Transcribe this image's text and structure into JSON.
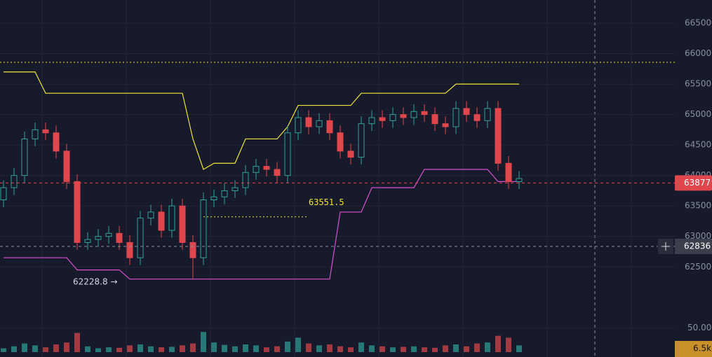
{
  "chart_data": {
    "type": "candlestick",
    "open": [
      63600,
      63800,
      64000,
      64600,
      64750,
      64700,
      64400,
      63900,
      62900,
      62950,
      63000,
      63050,
      62900,
      62650,
      63300,
      63400,
      63100,
      63500,
      62900,
      62650,
      63600,
      63650,
      63750,
      63800,
      64050,
      64150,
      64100,
      64000,
      64700,
      64950,
      64800,
      64900,
      64700,
      64400,
      64300,
      64850,
      64950,
      64900,
      65000,
      64950,
      65050,
      65000,
      64850,
      64800,
      65100,
      65000,
      64900,
      65100,
      64200,
      63900
    ],
    "high": [
      63920,
      64120,
      64720,
      64870,
      64870,
      64820,
      64520,
      64020,
      63070,
      63120,
      63170,
      63170,
      63020,
      63420,
      63520,
      63520,
      63620,
      63620,
      63020,
      63720,
      63770,
      63870,
      63920,
      64170,
      64270,
      64270,
      64220,
      64820,
      65070,
      65070,
      65020,
      65020,
      64820,
      64520,
      64970,
      65070,
      65070,
      65120,
      65120,
      65170,
      65170,
      65120,
      64970,
      65220,
      65220,
      65120,
      65220,
      65220,
      64320,
      64070
    ],
    "low": [
      63480,
      63680,
      63880,
      64480,
      64580,
      64280,
      63780,
      62780,
      62780,
      62830,
      62880,
      62780,
      62530,
      62530,
      63180,
      62980,
      62980,
      62780,
      62300,
      62530,
      63480,
      63530,
      63630,
      63680,
      63930,
      63980,
      63880,
      63880,
      64580,
      64680,
      64680,
      64580,
      64280,
      64180,
      64180,
      64730,
      64780,
      64780,
      64830,
      64830,
      64880,
      64730,
      64680,
      64680,
      64880,
      64780,
      64780,
      64080,
      63780,
      63780
    ],
    "close": [
      63800,
      64000,
      64600,
      64750,
      64700,
      64400,
      63900,
      62900,
      62950,
      63000,
      63050,
      62900,
      62650,
      63300,
      63400,
      63100,
      63500,
      62900,
      62650,
      63600,
      63650,
      63750,
      63800,
      64050,
      64150,
      64100,
      64000,
      64700,
      64950,
      64800,
      64900,
      64700,
      64400,
      64300,
      64850,
      64950,
      64900,
      65000,
      64950,
      65050,
      65000,
      64850,
      64800,
      65100,
      65000,
      64900,
      65100,
      64200,
      63900,
      63950
    ],
    "upper": [
      65700,
      65700,
      65700,
      65700,
      65350,
      65350,
      65350,
      65350,
      65350,
      65350,
      65350,
      65350,
      65350,
      65350,
      65350,
      65350,
      65350,
      65350,
      64600,
      64100,
      64200,
      64200,
      64200,
      64600,
      64600,
      64600,
      64600,
      64800,
      65150,
      65150,
      65150,
      65150,
      65150,
      65150,
      65350,
      65350,
      65350,
      65350,
      65350,
      65350,
      65350,
      65350,
      65350,
      65500,
      65500,
      65500,
      65500,
      65500,
      65500,
      65500
    ],
    "lower": [
      62650,
      62650,
      62650,
      62650,
      62650,
      62650,
      62650,
      62450,
      62450,
      62450,
      62450,
      62450,
      62300,
      62300,
      62300,
      62300,
      62300,
      62300,
      62300,
      62300,
      62300,
      62300,
      62300,
      62300,
      62300,
      62300,
      62300,
      62300,
      62300,
      62300,
      62300,
      62300,
      63400,
      63400,
      63400,
      63800,
      63800,
      63800,
      63800,
      63800,
      64100,
      64100,
      64100,
      64100,
      64100,
      64100,
      64100,
      63900,
      63900,
      63900
    ],
    "volume": [
      8,
      12,
      18,
      14,
      10,
      16,
      20,
      40,
      12,
      8,
      10,
      9,
      14,
      16,
      12,
      10,
      11,
      14,
      18,
      42,
      20,
      15,
      12,
      16,
      14,
      10,
      12,
      22,
      30,
      18,
      14,
      16,
      12,
      10,
      20,
      14,
      12,
      10,
      11,
      12,
      10,
      9,
      14,
      16,
      12,
      18,
      20,
      34,
      30,
      14
    ],
    "up_color": "#2fa39a",
    "down_color": "#e0474c",
    "upper_color": "#f2e33a",
    "lower_color": "#d94fd0",
    "ylim": [
      61940,
      66880
    ],
    "yticks": [
      62500,
      63000,
      63500,
      64000,
      64500,
      65000,
      65500,
      66000,
      66500
    ],
    "vlim": [
      0,
      70
    ],
    "vticks": [
      {
        "value": 50,
        "label": "50.00"
      }
    ],
    "grid": true,
    "last_price": 63877,
    "cursor_price": 62836,
    "annotations": [
      {
        "text": "63551.5",
        "value": 63551.5
      },
      {
        "text": "62228.8 →",
        "value": 62228.8
      }
    ],
    "volume_tag": "6.5k"
  }
}
